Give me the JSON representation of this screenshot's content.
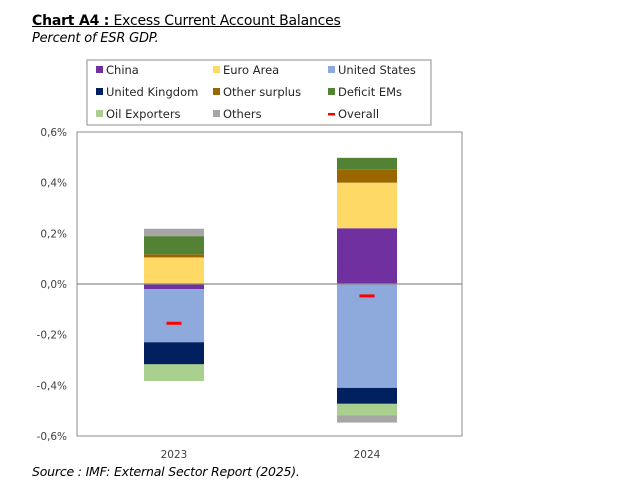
{
  "header": {
    "title_bold": "Chart A4 :",
    "title_rest": " Excess Current Account Balances",
    "subtitle": "Percent of ESR GDP."
  },
  "footer": {
    "source": "Source : IMF: External Sector Report (2025)."
  },
  "chart_data": {
    "type": "bar",
    "stacked": true,
    "title": "Chart A4 : Excess Current Account Balances",
    "subtitle": "Percent of ESR GDP.",
    "xlabel": "",
    "ylabel": "",
    "categories": [
      "2023",
      "2024"
    ],
    "ylim": [
      -0.6,
      0.6
    ],
    "yticks": [
      0.6,
      0.4,
      0.2,
      0.0,
      -0.2,
      -0.4,
      -0.6
    ],
    "ytick_labels": [
      "0,6%",
      "0,4%",
      "0,2%",
      "0,0%",
      "-0,2%",
      "-0,4%",
      "-0,6%"
    ],
    "grid": false,
    "legend_position": "top",
    "series": [
      {
        "name": "China",
        "color": "#7030A0",
        "values": [
          -0.02,
          0.22
        ]
      },
      {
        "name": "Euro Area",
        "color": "#FFD966",
        "values": [
          0.105,
          0.18
        ]
      },
      {
        "name": "United States",
        "color": "#8EA9DB",
        "values": [
          -0.21,
          -0.41
        ]
      },
      {
        "name": "United Kingdom",
        "color": "#002060",
        "values": [
          -0.087,
          -0.063
        ]
      },
      {
        "name": "Other surplus",
        "color": "#996600",
        "values": [
          0.012,
          0.053
        ]
      },
      {
        "name": "Deficit EMs",
        "color": "#548235",
        "values": [
          0.072,
          0.045
        ]
      },
      {
        "name": "Oil Exporters",
        "color": "#A9D08E",
        "values": [
          -0.066,
          -0.046
        ]
      },
      {
        "name": "Others",
        "color": "#A6A6A6",
        "values": [
          0.029,
          -0.028
        ]
      }
    ],
    "overall": {
      "name": "Overall",
      "color": "#FF0000",
      "values": [
        -0.155,
        -0.047
      ]
    },
    "legend_order": [
      "China",
      "Euro Area",
      "United States",
      "United Kingdom",
      "Other surplus",
      "Deficit EMs",
      "Oil Exporters",
      "Others",
      "Overall"
    ]
  }
}
